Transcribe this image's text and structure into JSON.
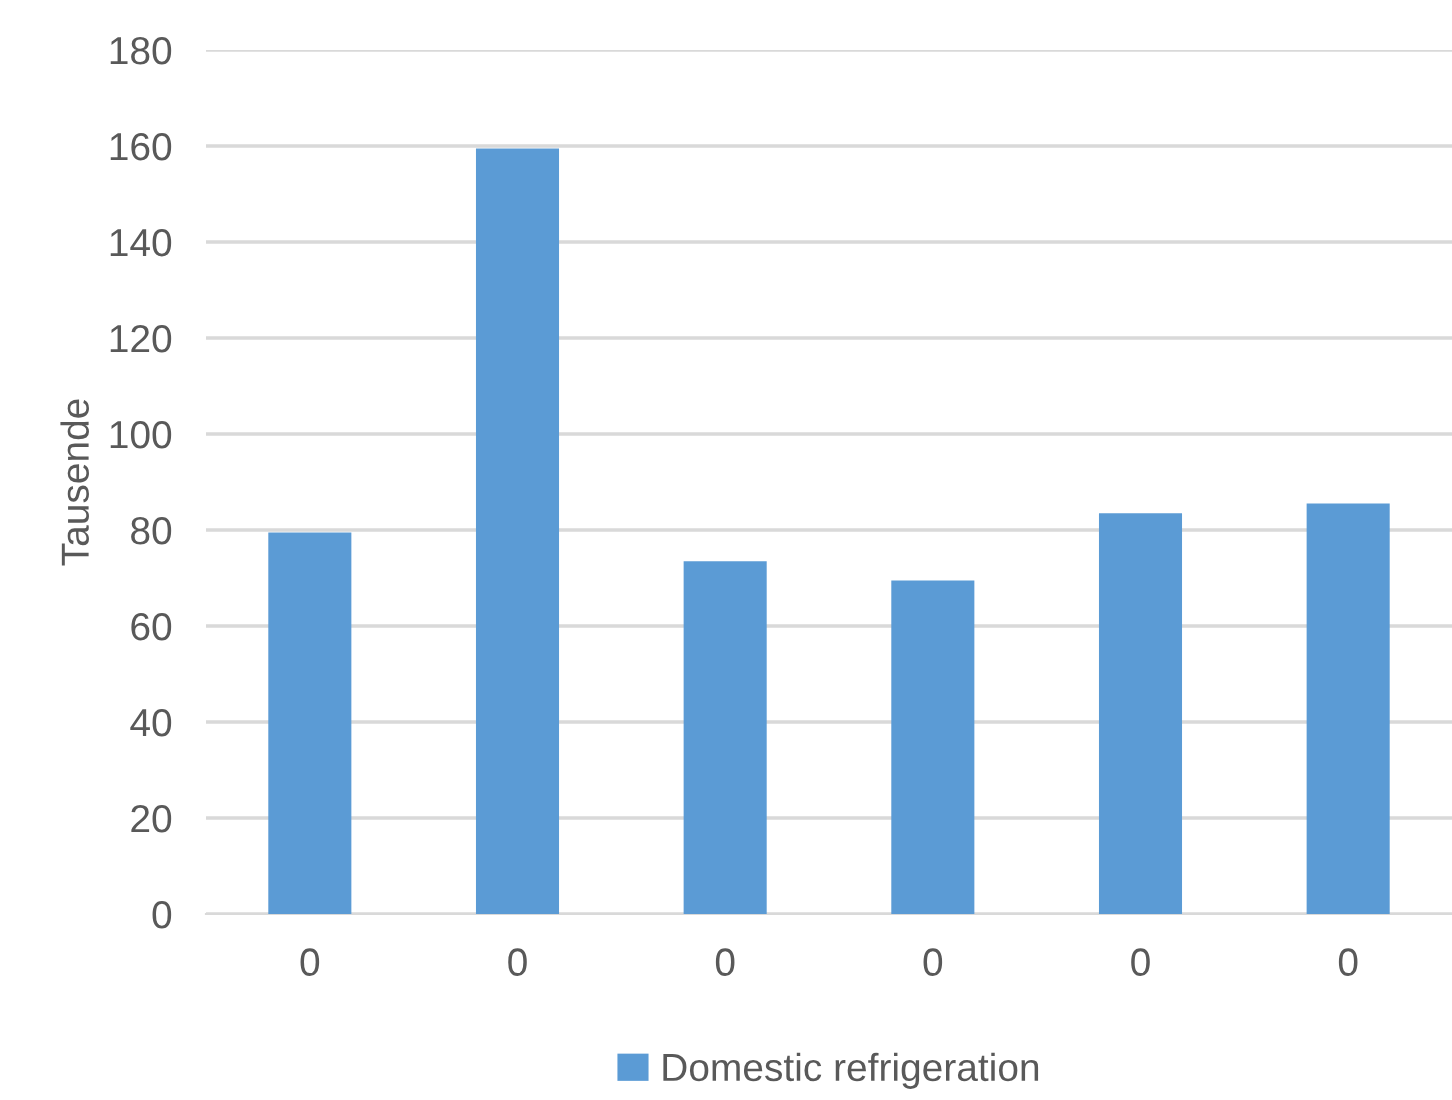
{
  "chart_data": {
    "type": "bar",
    "ylabel": "Tausende",
    "categories": [
      "0",
      "0",
      "0",
      "0",
      "0",
      "0"
    ],
    "series": [
      {
        "name": "Domestic refrigeration",
        "color": "#5b9bd5",
        "values": [
          79.5,
          159.5,
          73.5,
          69.5,
          83.5,
          85.5
        ]
      }
    ],
    "ylim": [
      0,
      180
    ],
    "yticks": [
      0,
      20,
      40,
      60,
      80,
      100,
      120,
      140,
      160,
      180
    ],
    "grid": "y",
    "legend": "bottom"
  }
}
